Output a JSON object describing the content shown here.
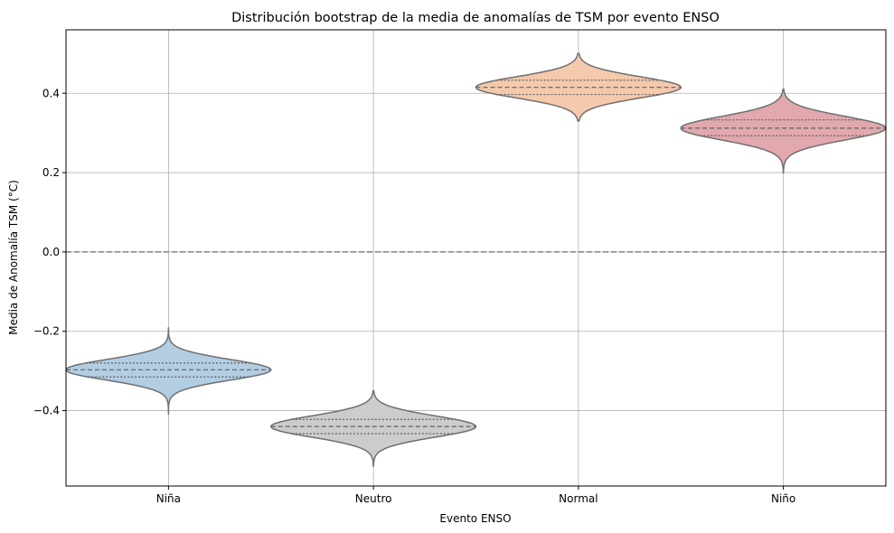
{
  "chart_data": {
    "type": "violin",
    "title": "Distribución bootstrap de la media de anomalías de TSM por evento ENSO",
    "xlabel": "Evento ENSO",
    "ylabel": "Media de Anomalía TSM (°C)",
    "categories": [
      "Niña",
      "Neutro",
      "Normal",
      "Niño"
    ],
    "ylim": [
      -0.59,
      0.56
    ],
    "yticks": [
      -0.4,
      -0.2,
      0.0,
      0.2,
      0.4
    ],
    "ytick_labels": [
      "−0.4",
      "−0.2",
      "0.0",
      "0.2",
      "0.4"
    ],
    "grid": true,
    "reference_line": {
      "y": 0.0,
      "style": "dashed",
      "color": "#808080"
    },
    "inner": "quartile",
    "violins": [
      {
        "category": "Niña",
        "min": -0.41,
        "max": -0.19,
        "median": -0.297,
        "q1": -0.315,
        "q3": -0.28,
        "color": "#b3cde3"
      },
      {
        "category": "Neutro",
        "min": -0.54,
        "max": -0.35,
        "median": -0.44,
        "q1": -0.458,
        "q3": -0.422,
        "color": "#cccccc"
      },
      {
        "category": "Normal",
        "min": 0.33,
        "max": 0.5,
        "median": 0.415,
        "q1": 0.397,
        "q3": 0.433,
        "color": "#f4c9ac"
      },
      {
        "category": "Niño",
        "min": 0.2,
        "max": 0.41,
        "median": 0.312,
        "q1": 0.293,
        "q3": 0.333,
        "color": "#e1a8ae"
      }
    ]
  }
}
